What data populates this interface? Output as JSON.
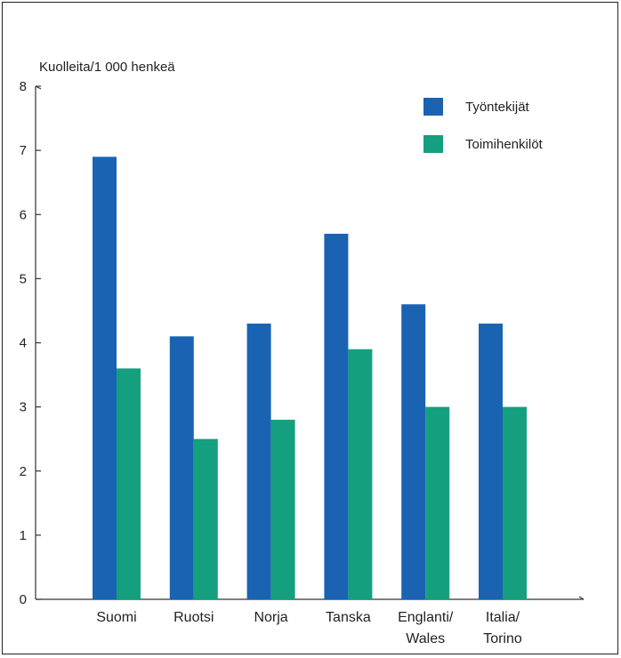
{
  "chart_data": {
    "type": "bar",
    "title": "",
    "xlabel": "",
    "ylabel": "Kuolleita/1 000 henkeä",
    "ylim": [
      0,
      8
    ],
    "yticks": [
      0,
      1,
      2,
      3,
      4,
      5,
      6,
      7,
      8
    ],
    "grid": false,
    "legend_position": "top-right",
    "categories": [
      [
        "Suomi"
      ],
      [
        "Ruotsi"
      ],
      [
        "Norja"
      ],
      [
        "Tanska"
      ],
      [
        "Englanti/",
        "Wales"
      ],
      [
        "Italia/",
        "Torino"
      ]
    ],
    "series": [
      {
        "name": "Työntekijät",
        "color": "#1a63b3",
        "values": [
          6.9,
          4.1,
          4.3,
          5.7,
          4.6,
          4.3
        ]
      },
      {
        "name": "Toimihenkilöt",
        "color": "#14a07e",
        "values": [
          3.6,
          2.5,
          2.8,
          3.9,
          3.0,
          3.0
        ]
      }
    ]
  }
}
